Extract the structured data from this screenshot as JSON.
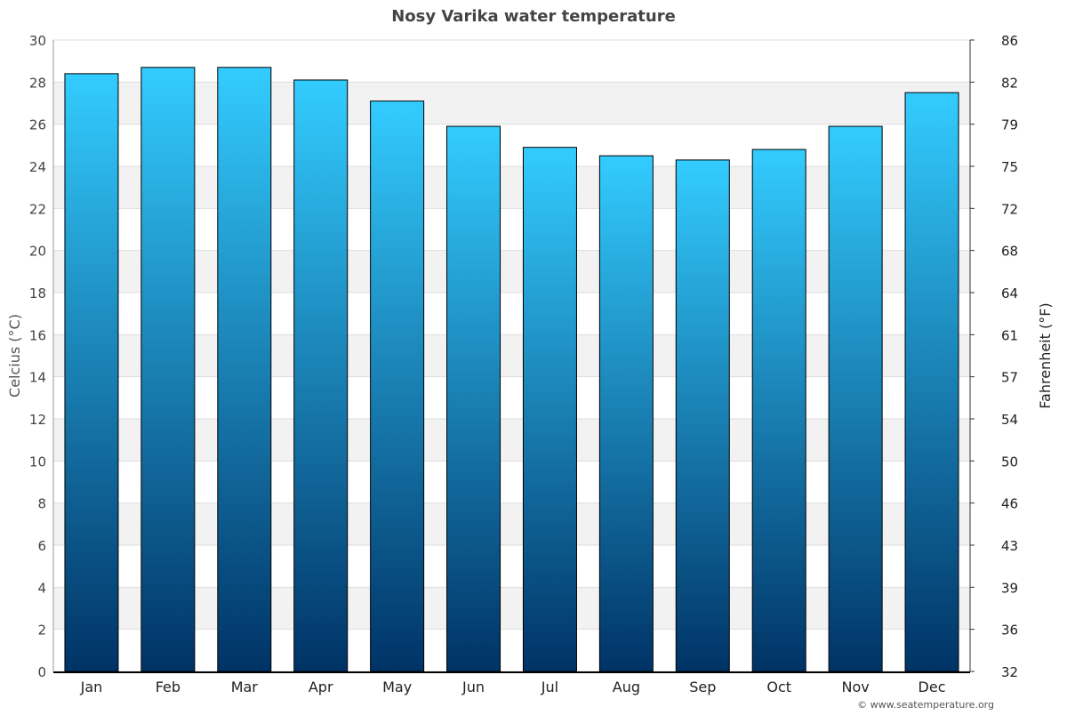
{
  "chart_data": {
    "type": "bar",
    "title": "Nosy Varika water temperature",
    "ylabel": "Celcius (°C)",
    "ylabel_right": "Fahrenheit (°F)",
    "categories": [
      "Jan",
      "Feb",
      "Mar",
      "Apr",
      "May",
      "Jun",
      "Jul",
      "Aug",
      "Sep",
      "Oct",
      "Nov",
      "Dec"
    ],
    "values": [
      28.4,
      28.7,
      28.7,
      28.1,
      27.1,
      25.9,
      24.9,
      24.5,
      24.3,
      24.8,
      25.9,
      27.5
    ],
    "ylim": [
      0,
      30
    ],
    "yticks": [
      0,
      2,
      4,
      6,
      8,
      10,
      12,
      14,
      16,
      18,
      20,
      22,
      24,
      26,
      28,
      30
    ],
    "yticks_right": [
      "32",
      "36",
      "39",
      "43",
      "46",
      "50",
      "54",
      "57",
      "61",
      "64",
      "68",
      "72",
      "75",
      "79",
      "82",
      "86"
    ],
    "grid": true,
    "bar_color_top": "#33ccff",
    "bar_color_bottom": "#003366"
  },
  "footer": "© www.seatemperature.org"
}
